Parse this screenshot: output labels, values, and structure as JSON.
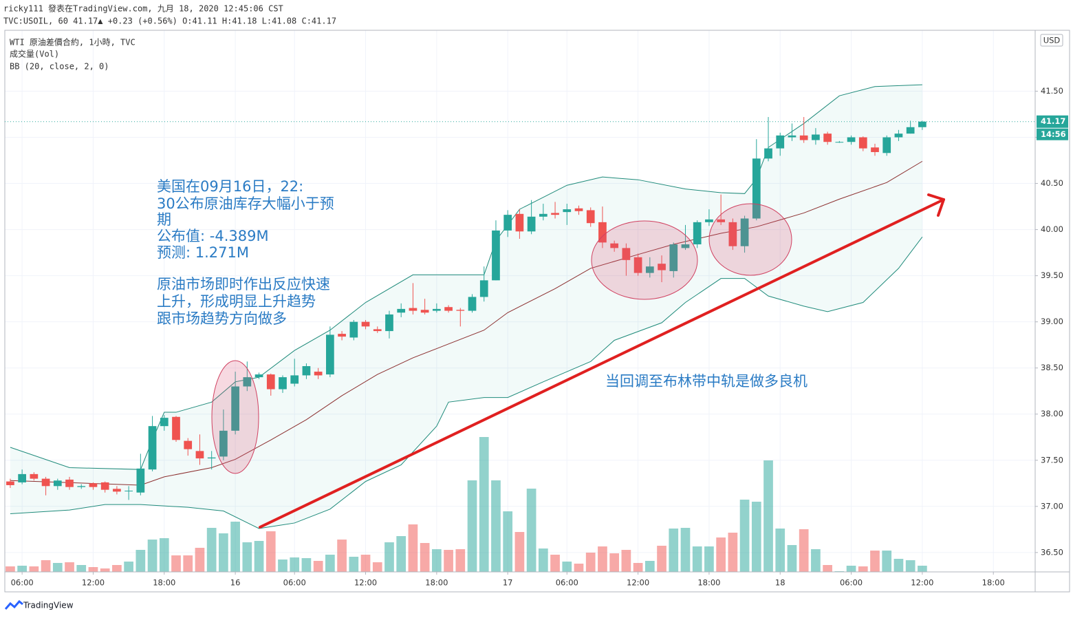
{
  "header": {
    "line1": "ricky111 發表在TradingView.com, 九月 18, 2020 12:45:06 CST",
    "line2": "TVC:USOIL, 60 41.17▲ +0.23 (+0.56%) O:41.11 H:41.18 L:41.08 C:41.17"
  },
  "legend": [
    "WTI 原油差價合約, 1小時, TVC",
    "成交量(Vol)",
    "BB (20, close, 2, 0)"
  ],
  "currency": "USD",
  "annotations": {
    "main": [
      "美国在09月16日，22:",
      "30公布原油库存大幅小于预",
      "期",
      "公布值: -4.389M",
      "预测: 1.271M",
      "原油市场即时作出反应快速",
      "上升，形成明显上升趋势",
      "跟市场趋势方向做多"
    ],
    "pullback": "当回调至布林带中轨是做多良机"
  },
  "brand": "TradingView",
  "chart_data": {
    "type": "candlestick",
    "up_color": "#26a69a",
    "down_color": "#ef5350",
    "open": [
      37.27,
      37.26,
      37.35,
      37.3,
      37.22,
      37.29,
      37.21,
      37.25,
      37.26,
      37.19,
      37.17,
      37.15,
      37.4,
      37.87,
      37.97,
      37.71,
      37.6,
      37.52,
      37.54,
      37.82,
      38.3,
      38.4,
      38.43,
      38.27,
      38.33,
      38.42,
      38.46,
      38.43,
      38.87,
      38.83,
      39.0,
      38.92,
      38.9,
      39.1,
      39.15,
      39.13,
      39.12,
      39.16,
      39.13,
      39.12,
      39.27,
      39.45,
      39.99,
      40.17,
      39.98,
      40.14,
      40.18,
      40.19,
      40.23,
      40.21,
      40.08,
      39.85,
      39.8,
      39.7,
      39.53,
      39.63,
      39.55,
      39.8,
      39.84,
      40.08,
      40.11,
      40.08,
      39.82,
      40.12,
      40.77,
      40.88,
      41.0,
      41.02,
      40.97,
      41.04,
      40.95,
      40.95,
      41.0,
      40.89,
      40.83,
      41.0,
      41.04,
      41.11
    ],
    "high": [
      37.3,
      37.4,
      37.37,
      37.32,
      37.3,
      37.32,
      37.24,
      37.26,
      37.27,
      37.22,
      37.22,
      37.57,
      37.98,
      37.99,
      37.98,
      37.74,
      37.78,
      37.6,
      38.05,
      38.46,
      38.57,
      38.45,
      38.44,
      38.42,
      38.6,
      38.55,
      38.5,
      38.95,
      38.9,
      39.02,
      39.02,
      38.95,
      39.12,
      39.2,
      39.42,
      39.25,
      39.2,
      39.18,
      39.15,
      39.3,
      39.6,
      40.1,
      40.21,
      40.22,
      40.32,
      40.28,
      40.3,
      40.28,
      40.26,
      40.24,
      40.25,
      39.88,
      39.85,
      39.74,
      39.7,
      39.72,
      39.86,
      40.05,
      40.1,
      40.22,
      40.38,
      40.12,
      40.15,
      40.98,
      41.22,
      41.05,
      41.15,
      41.22,
      41.1,
      41.06,
      40.96,
      41.02,
      41.01,
      40.93,
      41.02,
      41.08,
      41.18,
      41.18
    ],
    "low": [
      37.2,
      37.24,
      37.28,
      37.12,
      37.18,
      37.18,
      37.19,
      37.18,
      37.15,
      37.13,
      37.07,
      37.12,
      37.38,
      37.82,
      37.7,
      37.55,
      37.45,
      37.4,
      37.5,
      37.78,
      38.25,
      38.38,
      38.2,
      38.23,
      38.3,
      38.38,
      38.38,
      38.4,
      38.8,
      38.8,
      38.92,
      38.88,
      38.82,
      39.05,
      39.08,
      39.08,
      39.1,
      39.1,
      38.95,
      39.1,
      39.22,
      39.45,
      39.92,
      39.9,
      39.95,
      40.1,
      40.12,
      40.05,
      40.16,
      40.03,
      39.8,
      39.76,
      39.5,
      39.5,
      39.48,
      39.43,
      39.48,
      39.78,
      39.8,
      40.04,
      40.05,
      39.78,
      39.75,
      40.1,
      40.74,
      40.8,
      40.96,
      40.94,
      40.92,
      40.92,
      40.94,
      40.92,
      40.85,
      40.8,
      40.8,
      40.96,
      41.04,
      41.08
    ],
    "close": [
      37.23,
      37.35,
      37.3,
      37.22,
      37.28,
      37.21,
      37.22,
      37.21,
      37.18,
      37.16,
      37.17,
      37.41,
      37.87,
      37.96,
      37.72,
      37.62,
      37.52,
      37.53,
      37.82,
      38.3,
      38.4,
      38.43,
      38.27,
      38.4,
      38.42,
      38.52,
      38.42,
      38.86,
      38.84,
      39.0,
      38.95,
      38.9,
      39.08,
      39.14,
      39.12,
      39.1,
      39.14,
      39.12,
      39.12,
      39.27,
      39.45,
      39.99,
      40.16,
      39.98,
      40.14,
      40.17,
      40.16,
      40.22,
      40.2,
      40.07,
      39.86,
      39.8,
      39.67,
      39.53,
      39.6,
      39.56,
      39.84,
      39.84,
      40.08,
      40.11,
      40.08,
      39.82,
      40.12,
      40.77,
      40.88,
      41.02,
      41.02,
      40.97,
      41.03,
      40.95,
      40.95,
      41.0,
      40.88,
      40.84,
      41.0,
      41.04,
      41.11,
      41.17
    ],
    "volume": [
      8,
      9,
      8,
      17,
      13,
      14,
      10,
      7,
      5,
      10,
      15,
      32,
      47,
      49,
      24,
      24,
      35,
      64,
      56,
      73,
      43,
      45,
      59,
      18,
      21,
      20,
      16,
      25,
      47,
      22,
      25,
      14,
      43,
      52,
      69,
      42,
      33,
      32,
      33,
      133,
      196,
      133,
      88,
      58,
      121,
      34,
      25,
      15,
      12,
      28,
      37,
      27,
      32,
      13,
      16,
      38,
      63,
      64,
      37,
      37,
      50,
      57,
      105,
      102,
      162,
      63,
      39,
      62,
      33,
      10,
      1,
      9,
      8,
      31,
      31,
      19,
      17,
      9
    ],
    "bands": [
      {
        "name": "upper",
        "color": "#1e8a7a",
        "x": [
          0,
          5,
          11,
          12,
          13,
          14,
          17,
          19,
          21,
          24,
          27,
          30,
          34,
          37,
          40,
          41,
          43,
          47,
          50,
          53,
          57,
          60,
          62,
          63,
          64,
          67,
          70,
          73,
          77
        ],
        "values": [
          37.64,
          37.42,
          37.4,
          37.72,
          38.02,
          38.02,
          38.13,
          38.35,
          38.4,
          38.69,
          38.91,
          39.21,
          39.51,
          39.51,
          39.51,
          39.88,
          40.22,
          40.48,
          40.57,
          40.54,
          40.44,
          40.4,
          40.39,
          40.55,
          40.89,
          41.15,
          41.45,
          41.55,
          41.57
        ]
      },
      {
        "name": "middle",
        "color": "#8b2e2e",
        "x": [
          0,
          11,
          13,
          17,
          19,
          22,
          25,
          28,
          31,
          34,
          37,
          40,
          42,
          46,
          49,
          53,
          56,
          60,
          63,
          67,
          70,
          74,
          77
        ],
        "values": [
          37.28,
          37.23,
          37.32,
          37.42,
          37.51,
          37.72,
          37.94,
          38.2,
          38.43,
          38.61,
          38.76,
          38.91,
          39.1,
          39.36,
          39.58,
          39.73,
          39.84,
          39.96,
          40.03,
          40.18,
          40.33,
          40.51,
          40.74
        ]
      },
      {
        "name": "lower",
        "color": "#1e8a7a",
        "x": [
          0,
          5,
          8,
          11,
          15,
          18,
          21,
          24,
          27,
          30,
          33,
          36,
          37,
          40,
          42,
          45,
          49,
          51,
          55,
          57,
          60,
          62,
          64,
          67,
          69,
          72,
          75,
          77
        ],
        "values": [
          36.92,
          36.96,
          37.02,
          37.02,
          36.99,
          36.95,
          36.76,
          36.82,
          36.97,
          37.27,
          37.45,
          37.87,
          38.13,
          38.18,
          38.18,
          38.35,
          38.57,
          38.8,
          38.99,
          39.21,
          39.47,
          39.47,
          39.28,
          39.17,
          39.11,
          39.21,
          39.58,
          39.92
        ]
      }
    ],
    "last_price": 41.17,
    "countdown": "14:56",
    "xlim": [
      -0.46,
      86.53
    ],
    "xticks": [
      {
        "value": 1,
        "label": "06:00"
      },
      {
        "value": 7,
        "label": "12:00"
      },
      {
        "value": 13,
        "label": "18:00"
      },
      {
        "value": 19,
        "label": "16"
      },
      {
        "value": 24,
        "label": "06:00"
      },
      {
        "value": 30,
        "label": "12:00"
      },
      {
        "value": 36,
        "label": "18:00"
      },
      {
        "value": 42,
        "label": "17"
      },
      {
        "value": 47,
        "label": "06:00"
      },
      {
        "value": 53,
        "label": "12:00"
      },
      {
        "value": 59,
        "label": "18:00"
      },
      {
        "value": 65,
        "label": "18"
      },
      {
        "value": 71,
        "label": "06:00"
      },
      {
        "value": 77,
        "label": "12:00"
      },
      {
        "value": 83,
        "label": "18:00"
      }
    ],
    "ylim": [
      36.29,
      42.16
    ],
    "yticks": [
      {
        "value": 36.5,
        "label": "36.50"
      },
      {
        "value": 37,
        "label": "37.00"
      },
      {
        "value": 37.5,
        "label": "37.50"
      },
      {
        "value": 38,
        "label": "38.00"
      },
      {
        "value": 38.5,
        "label": "38.50"
      },
      {
        "value": 39,
        "label": "39.00"
      },
      {
        "value": 39.5,
        "label": "39.50"
      },
      {
        "value": 40,
        "label": "40.00"
      },
      {
        "value": 40.5,
        "label": "40.50"
      },
      {
        "value": 41,
        "label": "41.00"
      },
      {
        "value": 41.5,
        "label": "41.50"
      }
    ],
    "grid": true
  }
}
